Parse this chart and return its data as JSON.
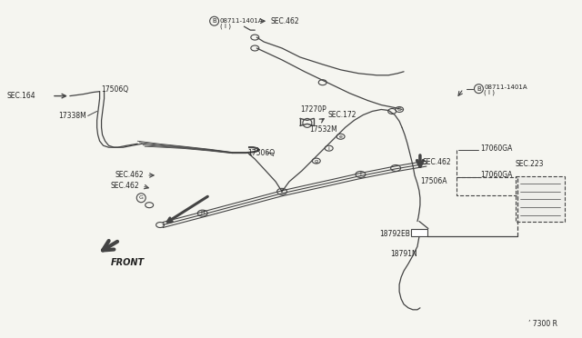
{
  "background_color": "#f5f5f0",
  "line_color": "#444444",
  "text_color": "#222222",
  "fig_width": 6.4,
  "fig_height": 3.72,
  "dpi": 100,
  "watermark": "’ 7300 R",
  "labels": {
    "SEC164": "SEC.164",
    "17506Q_left": "17506Q",
    "17338M": "17338M",
    "SEC462_upper": "SEC.462",
    "SEC462_lower": "SEC.462",
    "FRONT": "FRONT",
    "17270P": "17270P",
    "SEC172": "SEC.172",
    "17532M": "17532M",
    "17506Q_mid": "17506Q",
    "SEC462_right": "SEC.462",
    "17506A": "17506A",
    "17060GA_top": "17060GA",
    "17060GA_bot": "17060GA",
    "SEC223": "SEC.223",
    "18792EB": "18792EB",
    "18791N": "18791N",
    "B_top": "B 08711-1401A\n  ( I )",
    "B_right": "B 08711-1401A\n  ( I )",
    "SEC462_top": "SEC.462"
  }
}
